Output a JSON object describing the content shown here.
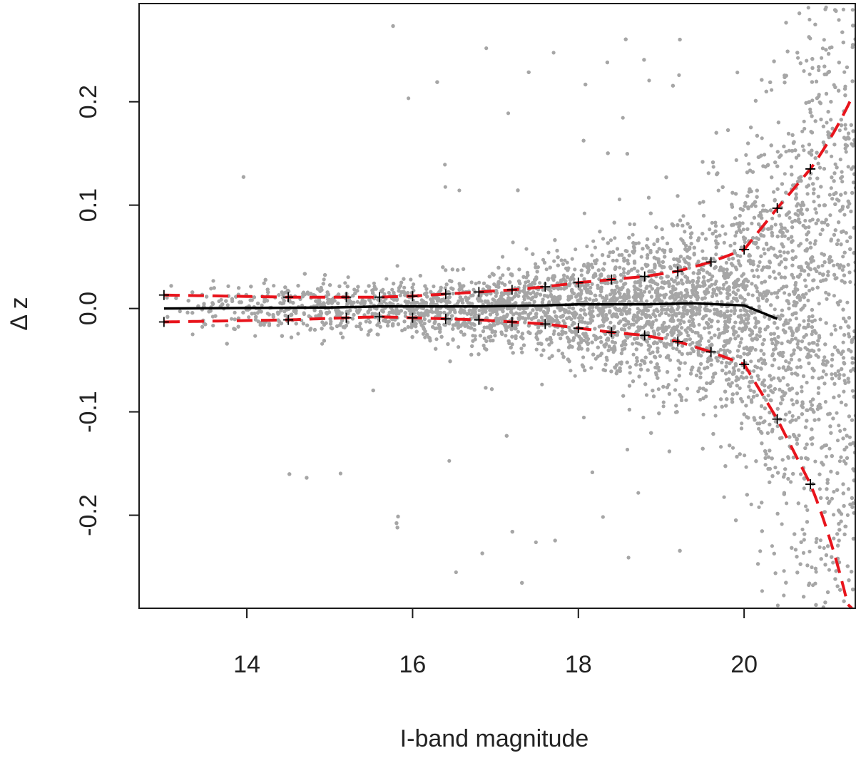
{
  "colors": {
    "points": "#a6a6a6",
    "median": "#000000",
    "envelope": "#e8141c",
    "markers": "#000000",
    "axis": "#1a1a1a"
  },
  "chart_data": {
    "type": "scatter",
    "title": "",
    "xlabel": "I-band magnitude",
    "ylabel": "Δ z",
    "xlim": [
      12.7,
      21.35
    ],
    "ylim": [
      -0.29,
      0.295
    ],
    "grid": false,
    "legend": "none",
    "x_ticks": [
      14,
      16,
      18,
      20
    ],
    "y_ticks": [
      -0.2,
      -0.1,
      0.0,
      0.1,
      0.2
    ],
    "x_tick_labels": [
      "14",
      "16",
      "18",
      "20"
    ],
    "y_tick_labels": [
      "-0.2",
      "-0.1",
      "0.0",
      "0.1",
      "0.2"
    ],
    "scatter_description": "Dense cloud of grey points (photometric redshift residuals vs magnitude), spread widening with fainter magnitude.",
    "median_line": {
      "x": [
        13.0,
        14.0,
        15.0,
        15.6,
        16.0,
        16.8,
        17.6,
        18.0,
        18.8,
        19.4,
        20.0,
        20.4
      ],
      "y": [
        0.0,
        0.0005,
        0.001,
        0.002,
        0.002,
        0.002,
        0.003,
        0.004,
        0.004,
        0.005,
        0.003,
        -0.01
      ]
    },
    "upper_markers": {
      "x": [
        13.0,
        14.5,
        15.2,
        15.6,
        16.0,
        16.4,
        16.8,
        17.2,
        17.6,
        18.0,
        18.4,
        18.8,
        19.2,
        19.6,
        20.0,
        20.4,
        20.8
      ],
      "y": [
        0.013,
        0.011,
        0.011,
        0.011,
        0.012,
        0.014,
        0.016,
        0.018,
        0.021,
        0.025,
        0.028,
        0.031,
        0.036,
        0.045,
        0.057,
        0.097,
        0.135
      ]
    },
    "lower_markers": {
      "x": [
        13.0,
        14.5,
        15.2,
        15.6,
        16.0,
        16.4,
        16.8,
        17.2,
        17.6,
        18.0,
        18.4,
        18.8,
        19.2,
        19.6,
        20.0,
        20.4,
        20.8
      ],
      "y": [
        -0.013,
        -0.011,
        -0.009,
        -0.008,
        -0.009,
        -0.01,
        -0.011,
        -0.013,
        -0.015,
        -0.019,
        -0.023,
        -0.026,
        -0.032,
        -0.042,
        -0.054,
        -0.107,
        -0.17
      ]
    }
  }
}
